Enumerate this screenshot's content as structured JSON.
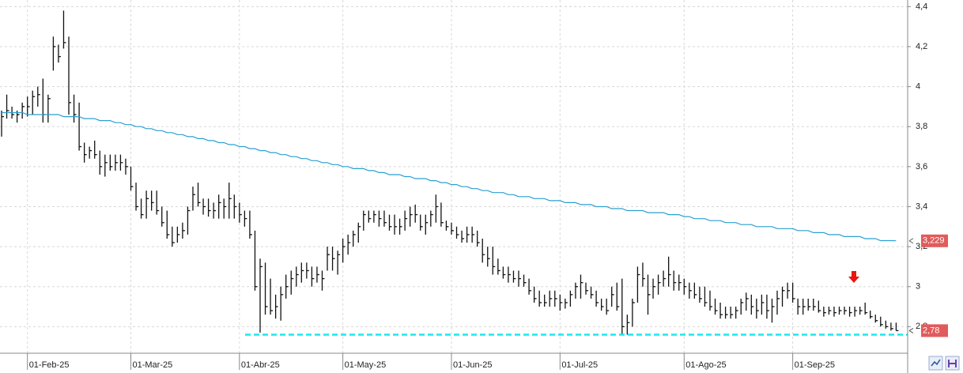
{
  "chart_data": {
    "type": "ohlc",
    "categories": [
      null,
      null,
      null,
      null,
      null,
      "01-Feb-25",
      null,
      null,
      null,
      null,
      null,
      null,
      null,
      null,
      null,
      null,
      null,
      null,
      null,
      null,
      null,
      null,
      null,
      null,
      null,
      "01-Mar-25",
      null,
      null,
      null,
      null,
      null,
      null,
      null,
      null,
      null,
      null,
      null,
      null,
      null,
      null,
      null,
      null,
      null,
      null,
      null,
      null,
      "01-Abr-25",
      null,
      null,
      null,
      null,
      null,
      null,
      null,
      null,
      null,
      null,
      null,
      null,
      null,
      null,
      null,
      null,
      null,
      null,
      null,
      "01-May-25",
      null,
      null,
      null,
      null,
      null,
      null,
      null,
      null,
      null,
      null,
      null,
      null,
      null,
      null,
      null,
      null,
      null,
      null,
      null,
      null,
      "01-Jun-25",
      null,
      null,
      null,
      null,
      null,
      null,
      null,
      null,
      null,
      null,
      null,
      null,
      null,
      null,
      null,
      null,
      null,
      null,
      null,
      null,
      "01-Jul-25",
      null,
      null,
      null,
      null,
      null,
      null,
      null,
      null,
      null,
      null,
      null,
      null,
      null,
      null,
      null,
      null,
      null,
      null,
      null,
      null,
      null,
      null,
      null,
      "01-Ago-25",
      null,
      null,
      null,
      null,
      null,
      null,
      null,
      null,
      null,
      null,
      null,
      null,
      null,
      null,
      null,
      null,
      null,
      null,
      null,
      null,
      "01-Sep-25",
      null,
      null,
      null,
      null,
      null,
      null,
      null,
      null,
      null,
      null,
      null,
      null,
      null,
      null,
      null,
      null,
      null,
      null,
      null,
      null
    ],
    "high": [
      3.88,
      3.96,
      3.9,
      3.88,
      3.92,
      3.95,
      3.98,
      4.0,
      4.04,
      3.96,
      4.25,
      4.21,
      4.38,
      4.25,
      3.96,
      3.92,
      3.72,
      3.7,
      3.73,
      3.68,
      3.66,
      3.66,
      3.66,
      3.66,
      3.64,
      3.6,
      3.52,
      3.44,
      3.48,
      3.48,
      3.48,
      3.4,
      3.38,
      3.3,
      3.3,
      3.32,
      3.4,
      3.5,
      3.52,
      3.44,
      3.44,
      3.42,
      3.46,
      3.44,
      3.52,
      3.46,
      3.42,
      3.38,
      3.38,
      3.28,
      3.14,
      3.12,
      3.04,
      2.96,
      3.0,
      3.06,
      3.08,
      3.1,
      3.12,
      3.12,
      3.1,
      3.1,
      3.08,
      3.2,
      3.2,
      3.18,
      3.24,
      3.26,
      3.28,
      3.32,
      3.38,
      3.38,
      3.38,
      3.38,
      3.38,
      3.36,
      3.36,
      3.34,
      3.38,
      3.4,
      3.41,
      3.36,
      3.36,
      3.38,
      3.46,
      3.42,
      3.33,
      3.32,
      3.3,
      3.28,
      3.3,
      3.3,
      3.28,
      3.24,
      3.2,
      3.2,
      3.14,
      3.1,
      3.1,
      3.08,
      3.08,
      3.06,
      3.04,
      3.0,
      2.98,
      2.96,
      2.98,
      2.98,
      2.96,
      2.94,
      2.98,
      3.02,
      3.06,
      3.02,
      3.0,
      2.98,
      2.94,
      2.94,
      3.0,
      3.02,
      3.04,
      2.86,
      2.94,
      3.1,
      3.12,
      3.06,
      3.04,
      3.06,
      3.08,
      3.15,
      3.08,
      3.06,
      3.04,
      3.02,
      3.02,
      3.0,
      3.0,
      2.98,
      2.94,
      2.92,
      2.9,
      2.9,
      2.9,
      2.94,
      2.97,
      2.96,
      2.94,
      2.96,
      2.96,
      2.94,
      2.98,
      3.0,
      3.02,
      3.02,
      2.94,
      2.94,
      2.94,
      2.94,
      2.93,
      2.9,
      2.9,
      2.9,
      2.9,
      2.9,
      2.9,
      2.9,
      2.9,
      2.92,
      2.88,
      2.86,
      2.85,
      2.83,
      2.82,
      2.82
    ],
    "low": [
      3.75,
      3.84,
      3.84,
      3.82,
      3.84,
      3.85,
      3.86,
      3.9,
      3.82,
      3.82,
      4.08,
      4.12,
      4.19,
      3.86,
      3.82,
      3.68,
      3.62,
      3.64,
      3.64,
      3.56,
      3.55,
      3.58,
      3.58,
      3.58,
      3.56,
      3.48,
      3.38,
      3.34,
      3.34,
      3.38,
      3.36,
      3.3,
      3.24,
      3.2,
      3.22,
      3.24,
      3.26,
      3.38,
      3.4,
      3.36,
      3.35,
      3.34,
      3.34,
      3.34,
      3.34,
      3.34,
      3.32,
      3.3,
      3.24,
      2.98,
      2.77,
      2.86,
      2.86,
      2.84,
      2.83,
      2.94,
      2.96,
      3.0,
      3.02,
      3.04,
      3.0,
      3.02,
      2.98,
      3.08,
      3.08,
      3.06,
      3.12,
      3.16,
      3.2,
      3.22,
      3.28,
      3.32,
      3.32,
      3.3,
      3.3,
      3.28,
      3.26,
      3.26,
      3.28,
      3.3,
      3.32,
      3.28,
      3.26,
      3.3,
      3.32,
      3.3,
      3.28,
      3.26,
      3.24,
      3.22,
      3.22,
      3.22,
      3.2,
      3.12,
      3.1,
      3.06,
      3.06,
      3.04,
      3.02,
      3.02,
      3.0,
      3.0,
      2.96,
      2.92,
      2.9,
      2.9,
      2.9,
      2.9,
      2.88,
      2.89,
      2.9,
      2.94,
      2.94,
      2.96,
      2.94,
      2.9,
      2.88,
      2.86,
      2.9,
      2.88,
      2.76,
      2.76,
      2.8,
      2.92,
      3.0,
      2.86,
      2.94,
      2.96,
      3.0,
      3.0,
      2.98,
      2.98,
      2.96,
      2.94,
      2.94,
      2.92,
      2.9,
      2.88,
      2.86,
      2.84,
      2.84,
      2.84,
      2.84,
      2.86,
      2.88,
      2.86,
      2.84,
      2.86,
      2.84,
      2.82,
      2.86,
      2.9,
      2.94,
      2.92,
      2.86,
      2.86,
      2.88,
      2.88,
      2.87,
      2.85,
      2.86,
      2.85,
      2.86,
      2.86,
      2.85,
      2.85,
      2.86,
      2.86,
      2.84,
      2.82,
      2.8,
      2.79,
      2.78,
      2.78
    ],
    "close": [
      3.85,
      3.88,
      3.86,
      3.86,
      3.9,
      3.9,
      3.95,
      3.96,
      3.86,
      3.94,
      4.2,
      4.15,
      4.22,
      3.92,
      3.86,
      3.7,
      3.66,
      3.68,
      3.66,
      3.6,
      3.62,
      3.6,
      3.62,
      3.62,
      3.6,
      3.5,
      3.4,
      3.36,
      3.44,
      3.42,
      3.38,
      3.32,
      3.26,
      3.22,
      3.26,
      3.28,
      3.38,
      3.46,
      3.42,
      3.4,
      3.38,
      3.38,
      3.42,
      3.4,
      3.44,
      3.4,
      3.36,
      3.34,
      3.26,
      3.0,
      3.1,
      2.9,
      2.88,
      2.9,
      2.96,
      3.0,
      3.04,
      3.06,
      3.08,
      3.08,
      3.04,
      3.06,
      3.04,
      3.16,
      3.14,
      3.16,
      3.2,
      3.22,
      3.26,
      3.3,
      3.36,
      3.34,
      3.36,
      3.34,
      3.32,
      3.3,
      3.3,
      3.3,
      3.34,
      3.36,
      3.36,
      3.3,
      3.32,
      3.36,
      3.4,
      3.32,
      3.3,
      3.28,
      3.26,
      3.24,
      3.26,
      3.26,
      3.22,
      3.16,
      3.14,
      3.1,
      3.08,
      3.06,
      3.06,
      3.04,
      3.04,
      3.02,
      2.98,
      2.94,
      2.92,
      2.92,
      2.94,
      2.94,
      2.92,
      2.92,
      2.96,
      3.0,
      3.02,
      2.98,
      2.96,
      2.92,
      2.9,
      2.88,
      2.96,
      2.9,
      2.8,
      2.82,
      2.92,
      3.06,
      3.04,
      2.96,
      3.0,
      3.02,
      3.04,
      3.06,
      3.02,
      3.02,
      3.0,
      2.98,
      2.96,
      2.94,
      2.92,
      2.9,
      2.88,
      2.86,
      2.86,
      2.86,
      2.88,
      2.92,
      2.94,
      2.9,
      2.88,
      2.92,
      2.88,
      2.9,
      2.94,
      2.98,
      2.98,
      2.94,
      2.9,
      2.9,
      2.9,
      2.9,
      2.88,
      2.87,
      2.88,
      2.87,
      2.88,
      2.88,
      2.87,
      2.88,
      2.88,
      2.87,
      2.85,
      2.83,
      2.81,
      2.8,
      2.79,
      2.78
    ],
    "close_value_label": "2,78",
    "color": "#111111",
    "ma": {
      "color": "#2b9fd0",
      "value_label": "3,229",
      "values": [
        3.87,
        3.87,
        3.87,
        3.87,
        3.87,
        3.86,
        3.86,
        3.86,
        3.86,
        3.86,
        3.86,
        3.86,
        3.85,
        3.85,
        3.85,
        3.85,
        3.84,
        3.84,
        3.84,
        3.83,
        3.83,
        3.83,
        3.82,
        3.82,
        3.81,
        3.81,
        3.8,
        3.8,
        3.79,
        3.79,
        3.78,
        3.78,
        3.77,
        3.77,
        3.76,
        3.76,
        3.75,
        3.75,
        3.74,
        3.74,
        3.73,
        3.73,
        3.72,
        3.72,
        3.71,
        3.71,
        3.7,
        3.7,
        3.69,
        3.69,
        3.68,
        3.68,
        3.67,
        3.67,
        3.66,
        3.66,
        3.65,
        3.65,
        3.64,
        3.64,
        3.63,
        3.63,
        3.62,
        3.62,
        3.61,
        3.61,
        3.6,
        3.6,
        3.59,
        3.59,
        3.59,
        3.58,
        3.58,
        3.57,
        3.57,
        3.56,
        3.56,
        3.56,
        3.55,
        3.55,
        3.54,
        3.54,
        3.54,
        3.53,
        3.53,
        3.52,
        3.52,
        3.51,
        3.51,
        3.5,
        3.5,
        3.49,
        3.49,
        3.48,
        3.48,
        3.47,
        3.47,
        3.47,
        3.46,
        3.46,
        3.45,
        3.45,
        3.45,
        3.44,
        3.44,
        3.44,
        3.43,
        3.43,
        3.43,
        3.42,
        3.42,
        3.42,
        3.41,
        3.41,
        3.41,
        3.4,
        3.4,
        3.4,
        3.39,
        3.39,
        3.39,
        3.38,
        3.38,
        3.38,
        3.38,
        3.37,
        3.37,
        3.37,
        3.37,
        3.36,
        3.36,
        3.36,
        3.35,
        3.35,
        3.34,
        3.34,
        3.34,
        3.33,
        3.33,
        3.33,
        3.32,
        3.32,
        3.32,
        3.31,
        3.31,
        3.31,
        3.3,
        3.3,
        3.3,
        3.3,
        3.29,
        3.29,
        3.29,
        3.29,
        3.28,
        3.28,
        3.28,
        3.27,
        3.27,
        3.27,
        3.26,
        3.26,
        3.26,
        3.25,
        3.25,
        3.25,
        3.25,
        3.24,
        3.24,
        3.24,
        3.23,
        3.23,
        3.23,
        3.229
      ]
    },
    "support": {
      "value": 2.76,
      "color": "#1ee6ee"
    },
    "ylim": [
      2.667,
      4.433
    ],
    "yticks": [
      {
        "value": 2.8,
        "label": "2,8"
      },
      3,
      {
        "value": 3.2,
        "label": "3,2"
      },
      {
        "value": 3.4,
        "label": "3,4"
      },
      {
        "value": 3.6,
        "label": "3,6"
      },
      {
        "value": 3.8,
        "label": "3,8"
      },
      4,
      {
        "value": 4.2,
        "label": "4,2"
      },
      {
        "value": 4.4,
        "label": "4,4"
      }
    ],
    "grid": true
  }
}
